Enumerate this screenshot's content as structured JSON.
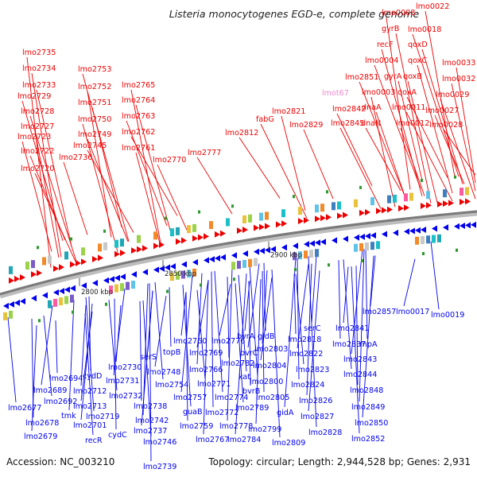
{
  "title": "Listeria monocytogenes EGD-e, complete genome",
  "footer": {
    "accession": "Accession: NC_003210",
    "summary": "Topology: circular; Length: 2,944,528 bp; Genes: 2,931"
  },
  "colors": {
    "background": "#ffffff",
    "forward": "#ee0000",
    "reverse": "#0000ee",
    "pink_label": "#ee88cc",
    "backbone": "#8a8a8a",
    "marker": "#2e9a2e"
  },
  "ticks": [
    "2800 kbp",
    "2850 kbp",
    "2900 kbp"
  ],
  "labels_forward": [
    "lmo2735",
    "lmo2734",
    "lmo2733",
    "lmo2729",
    "lmo2728",
    "lmo2727",
    "lmo2723",
    "lmo2722",
    "lmo2720",
    "lmo2753",
    "lmo2752",
    "lmo2751",
    "lmo2750",
    "lmo2749",
    "lmo2745",
    "lmo2736",
    "lmo2765",
    "lmo2764",
    "lmo2763",
    "lmo2762",
    "lmo2761",
    "lmo2770",
    "lmo2777",
    "lmo2812",
    "fabG",
    "lmo2821",
    "lmo2829",
    "lmo2842",
    "lmo2845",
    "lmo2851",
    "lmo0008",
    "lmo0022",
    "gyrB",
    "recF",
    "lmo0004",
    "gyrA",
    "qoxB",
    "qoxC",
    "qoxD",
    "lmo0018",
    "lmo0003",
    "dnaA",
    "dnaN",
    "qoxA",
    "lmo0011",
    "lmo0012",
    "lmo0027",
    "lmo0028",
    "lmo0029",
    "lmo0032",
    "lmo0033"
  ],
  "labels_pink": [
    "lmot67"
  ],
  "labels_reverse": [
    "lmo2677",
    "lmo2678",
    "lmo2679",
    "lmo2689",
    "lmo2692",
    "lmo2694",
    "tmk",
    "lmo2701",
    "recR",
    "cydD",
    "lmo2712",
    "lmo2713",
    "lmo2719",
    "cydC",
    "lmo2730",
    "lmo2731",
    "lmo2732",
    "lmo2738",
    "lmo2742",
    "lmo2737",
    "lmo2746",
    "lmo2739",
    "serS",
    "lmo2748",
    "lmo2754",
    "topB",
    "lmo2760",
    "lmo2757",
    "guaB",
    "lmo2759",
    "lmo2766",
    "lmo2769",
    "lmo2771",
    "lmo2772",
    "lmo2767",
    "lmo2776",
    "lmo2774",
    "lmo2782",
    "bvrA",
    "bvrC",
    "kat",
    "bvrB",
    "lmo2778",
    "lmo2784",
    "lmo2789",
    "gidB",
    "lmo2803",
    "lmo2804",
    "lmo2800",
    "lmo2805",
    "lmo2799",
    "gidA",
    "lmo2809",
    "lmo2818",
    "serC",
    "lmo2822",
    "lmo2823",
    "lmo2824",
    "lmo2826",
    "lmo2827",
    "lmo2828",
    "lmo2837",
    "lmo2841",
    "lmo2843",
    "lmo2844",
    "lmo2848",
    "lmo2849",
    "lmo2850",
    "lmo2852",
    "rnpA",
    "lmo2857",
    "lmo0017",
    "lmo0019"
  ]
}
